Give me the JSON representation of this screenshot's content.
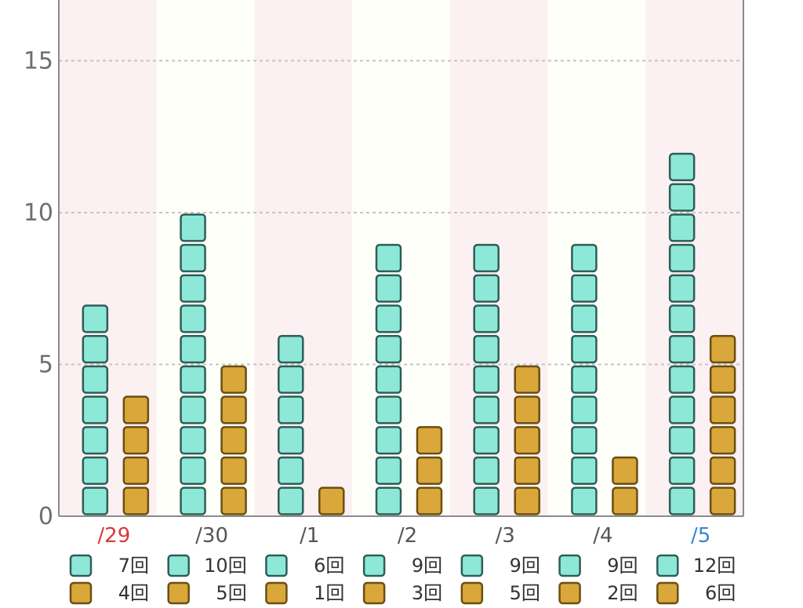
{
  "chart_data": {
    "type": "bar",
    "title": "",
    "xlabel": "",
    "ylabel": "",
    "ylim": [
      0,
      17
    ],
    "yticks": [
      "0",
      "5",
      "10",
      "15"
    ],
    "categories": [
      "/29",
      "/30",
      "/1",
      "/2",
      "/3",
      "/4",
      "/5"
    ],
    "category_colors": [
      "#d83a3a",
      "#555555",
      "#555555",
      "#555555",
      "#555555",
      "#555555",
      "#3a86d0"
    ],
    "grid": "horizontal dashed",
    "legend": "bottom, one entry per column",
    "series": [
      {
        "values": [
          7,
          10,
          6,
          9,
          9,
          9,
          12
        ],
        "color": "#8ee8d8",
        "border": "#2e5e56"
      },
      {
        "values": [
          4,
          5,
          1,
          3,
          5,
          2,
          6
        ],
        "color": "#d9a73a",
        "border": "#6b4e12"
      }
    ],
    "legend_labels": [
      [
        "7回",
        "10回",
        "6回",
        "9回",
        "9回",
        "9回",
        "12回"
      ],
      [
        "4回",
        "5回",
        "1回",
        "3回",
        "5回",
        "2回",
        "6回"
      ]
    ],
    "stripe_colors": [
      "#fbf0f2",
      "#fffffa"
    ]
  }
}
